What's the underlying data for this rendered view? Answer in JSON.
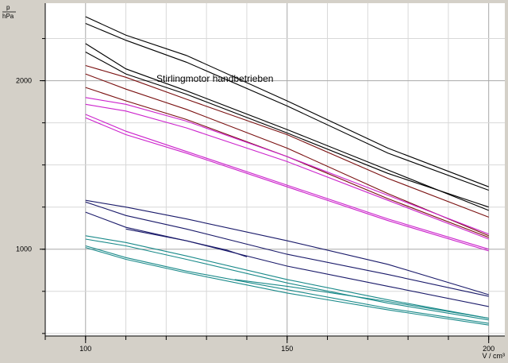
{
  "chart_data": {
    "type": "line",
    "title": "Stirlingmotor handbetrieben",
    "ylabel_symbol": "p",
    "ylabel_unit": "hPa",
    "xlabel": "V / cm³",
    "xlim": [
      90,
      204
    ],
    "ylim": [
      485,
      2460
    ],
    "x_ticks": [
      {
        "value": 100,
        "label": "100"
      },
      {
        "value": 150,
        "label": "150"
      },
      {
        "value": 200,
        "label": "200"
      }
    ],
    "y_ticks": [
      {
        "value": 1000,
        "label": "1000"
      },
      {
        "value": 2000,
        "label": "2000"
      }
    ],
    "grid": true,
    "series": [
      {
        "color": "#000000",
        "x": [
          100,
          110,
          125,
          150,
          175,
          200
        ],
        "y": [
          2380,
          2270,
          2150,
          1880,
          1600,
          1370
        ]
      },
      {
        "color": "#000000",
        "x": [
          100,
          110,
          125,
          150,
          175,
          200
        ],
        "y": [
          2340,
          2240,
          2110,
          1850,
          1570,
          1350
        ]
      },
      {
        "color": "#000000",
        "x": [
          100,
          110,
          125,
          150,
          175,
          200
        ],
        "y": [
          2170,
          2040,
          1920,
          1690,
          1450,
          1250
        ]
      },
      {
        "color": "#000000",
        "x": [
          100,
          110,
          125,
          150,
          175,
          200
        ],
        "y": [
          2220,
          2070,
          1940,
          1710,
          1470,
          1230
        ]
      },
      {
        "color": "#7a1010",
        "x": [
          100,
          110,
          125,
          150,
          175,
          200
        ],
        "y": [
          2090,
          2020,
          1890,
          1680,
          1420,
          1190
        ]
      },
      {
        "color": "#7a1010",
        "x": [
          100,
          110,
          125,
          150,
          175,
          200
        ],
        "y": [
          2040,
          1950,
          1830,
          1600,
          1330,
          1080
        ]
      },
      {
        "color": "#7a1010",
        "x": [
          100,
          110,
          125,
          150,
          175,
          200
        ],
        "y": [
          1960,
          1880,
          1770,
          1550,
          1300,
          1070
        ]
      },
      {
        "color": "#cc22cc",
        "x": [
          100,
          110,
          125,
          150,
          175,
          200
        ],
        "y": [
          1900,
          1860,
          1760,
          1550,
          1320,
          1090
        ]
      },
      {
        "color": "#cc22cc",
        "x": [
          100,
          110,
          125,
          150,
          175,
          200
        ],
        "y": [
          1860,
          1820,
          1720,
          1520,
          1290,
          1060
        ]
      },
      {
        "color": "#cc22cc",
        "x": [
          100,
          110,
          125,
          150,
          175,
          200
        ],
        "y": [
          1800,
          1700,
          1580,
          1380,
          1180,
          1000
        ]
      },
      {
        "color": "#cc22cc",
        "x": [
          100,
          110,
          125,
          150,
          175,
          200
        ],
        "y": [
          1780,
          1680,
          1570,
          1370,
          1170,
          990
        ]
      },
      {
        "color": "#1a1a6a",
        "x": [
          100,
          110,
          125,
          150,
          175,
          200
        ],
        "y": [
          1290,
          1250,
          1180,
          1050,
          910,
          730
        ]
      },
      {
        "color": "#1a1a6a",
        "x": [
          100,
          110,
          125,
          150,
          175,
          200
        ],
        "y": [
          1280,
          1200,
          1120,
          970,
          850,
          720
        ]
      },
      {
        "color": "#1a1a6a",
        "x": [
          100,
          110,
          125,
          150,
          175,
          200
        ],
        "y": [
          1220,
          1130,
          1050,
          900,
          780,
          660
        ]
      },
      {
        "color": "#1a1a6a",
        "x": [
          110,
          125,
          135,
          140
        ],
        "y": [
          1120,
          1050,
          995,
          955
        ]
      },
      {
        "color": "#1a8a8a",
        "x": [
          100,
          110,
          125,
          150,
          175,
          200
        ],
        "y": [
          1080,
          1040,
          960,
          820,
          700,
          590
        ]
      },
      {
        "color": "#1a8a8a",
        "x": [
          100,
          110,
          125,
          150,
          175,
          200
        ],
        "y": [
          1060,
          1020,
          940,
          800,
          680,
          580
        ]
      },
      {
        "color": "#1a8a8a",
        "x": [
          100,
          110,
          125,
          150,
          175,
          200
        ],
        "y": [
          1020,
          950,
          870,
          760,
          650,
          560
        ]
      },
      {
        "color": "#1a8a8a",
        "x": [
          100,
          110,
          125,
          150,
          175,
          200
        ],
        "y": [
          1010,
          940,
          860,
          740,
          640,
          550
        ]
      },
      {
        "color": "#1a8a8a",
        "x": [
          137,
          150,
          175,
          200
        ],
        "y": [
          820,
          780,
          690,
          590
        ]
      }
    ]
  }
}
